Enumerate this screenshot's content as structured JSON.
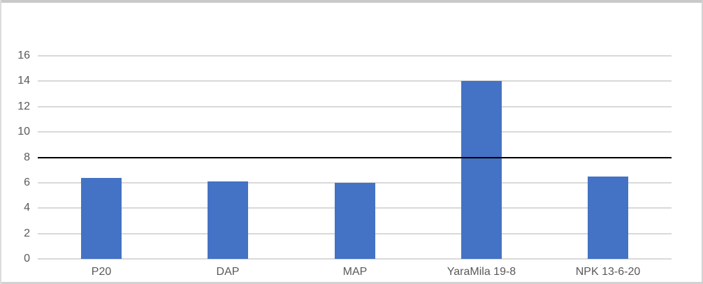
{
  "chart_data": {
    "type": "bar",
    "title": "",
    "xlabel": "",
    "ylabel": "",
    "categories": [
      "P20",
      "DAP",
      "MAP",
      "YaraMila 19-8",
      "NPK 13-6-20"
    ],
    "series": [
      {
        "name": "",
        "values": [
          6.4,
          6.1,
          6.0,
          14.0,
          6.5
        ],
        "color": "#4472C4"
      }
    ],
    "ylim": [
      0,
      16
    ],
    "yticks": [
      0,
      2,
      4,
      6,
      8,
      10,
      12,
      14,
      16
    ],
    "reference_line": {
      "value": 8,
      "color": "#000000"
    },
    "grid": true,
    "gridline_color": "#D9D9D9",
    "axis_text_color": "#595959",
    "legend_position": "none",
    "plot_background": "#FFFFFF"
  }
}
